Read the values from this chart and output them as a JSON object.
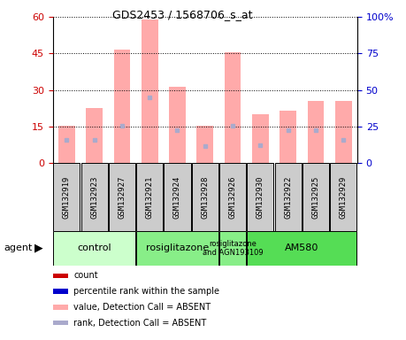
{
  "title": "GDS2453 / 1568706_s_at",
  "samples": [
    "GSM132919",
    "GSM132923",
    "GSM132927",
    "GSM132921",
    "GSM132924",
    "GSM132928",
    "GSM132926",
    "GSM132930",
    "GSM132922",
    "GSM132925",
    "GSM132929"
  ],
  "pink_bars": [
    15.5,
    22.5,
    46.5,
    59.0,
    31.5,
    15.5,
    45.5,
    20.0,
    21.5,
    25.5,
    25.5
  ],
  "blue_dots": [
    9.5,
    9.5,
    15.5,
    27.0,
    13.5,
    7.0,
    15.5,
    7.5,
    13.5,
    13.5,
    9.5
  ],
  "left_ylim": [
    0,
    60
  ],
  "right_ylim": [
    0,
    100
  ],
  "left_yticks": [
    0,
    15,
    30,
    45,
    60
  ],
  "right_yticks": [
    0,
    25,
    50,
    75,
    100
  ],
  "right_yticklabels": [
    "0",
    "25",
    "50",
    "75",
    "100%"
  ],
  "agent_groups": [
    {
      "label": "control",
      "start": 0,
      "end": 3,
      "color": "#ccffcc"
    },
    {
      "label": "rosiglitazone",
      "start": 3,
      "end": 6,
      "color": "#88ee88"
    },
    {
      "label": "rosiglitazone\nand AGN193109",
      "start": 6,
      "end": 7,
      "color": "#88ee88"
    },
    {
      "label": "AM580",
      "start": 7,
      "end": 11,
      "color": "#55dd55"
    }
  ],
  "bar_color": "#ffaaaa",
  "dot_color": "#aaaacc",
  "left_tick_color": "#cc0000",
  "right_tick_color": "#0000cc",
  "legend_colors": [
    "#cc0000",
    "#0000cc",
    "#ffaaaa",
    "#aaaacc"
  ],
  "legend_labels": [
    "count",
    "percentile rank within the sample",
    "value, Detection Call = ABSENT",
    "rank, Detection Call = ABSENT"
  ]
}
